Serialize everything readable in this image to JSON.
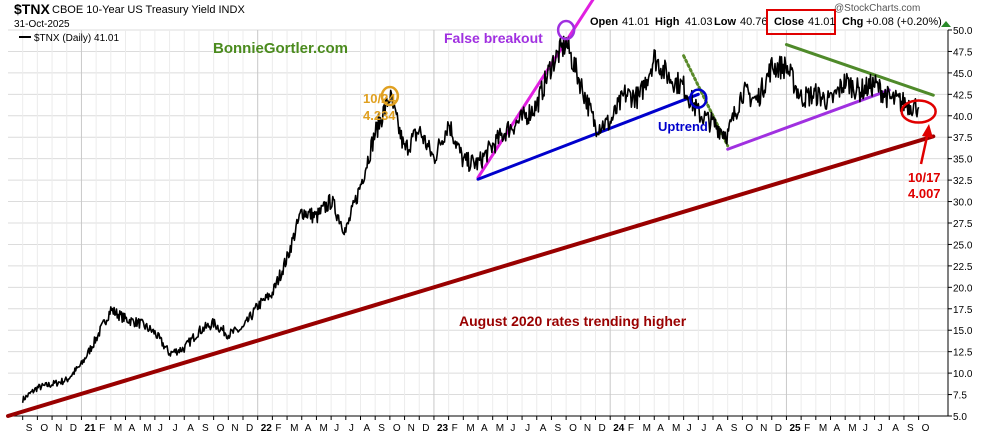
{
  "header": {
    "symbol": "$TNX",
    "name": "CBOE 10-Year US Treasury Yield INDX",
    "date": "31-Oct-2025",
    "watermark": "@StockCharts.com",
    "open_label": "Open",
    "open": "41.01",
    "high_label": "High",
    "high": "41.03",
    "low_label": "Low",
    "low": "40.76",
    "close_label": "Close",
    "close": "41.01",
    "chg_label": "Chg",
    "chg": "+0.08 (+0.20%)"
  },
  "legend": {
    "label": "$TNX (Daily) 41.01"
  },
  "annotations": {
    "brand": "BonnieGortler.com",
    "false_breakout": "False breakout",
    "oct_date": "10/24",
    "oct_value": "4.234",
    "uptrend": "Uptrend",
    "long_trend": "August 2020 rates trending higher",
    "low_date": "10/17",
    "low_value": "4.007"
  },
  "colors": {
    "price": "#000000",
    "long_trend": "#990000",
    "magenta": "#e020e0",
    "blue": "#0000cc",
    "purple": "#a030e0",
    "green_line": "#4f8a2a",
    "green_dotted": "#5a8a2a",
    "orange": "#e0a020",
    "red": "#e00000",
    "brand_green": "#4b8b1e",
    "grid": "#dcdcdc",
    "up_arrow": "#2a8a2a"
  },
  "chart_data": {
    "type": "line",
    "title": "$TNX CBOE 10-Year US Treasury Yield INDX",
    "series": [
      {
        "name": "$TNX (Daily) 41.01"
      }
    ],
    "x": [
      "2020-09",
      "2020-10",
      "2020-11",
      "2020-12",
      "2021-01",
      "2021-02",
      "2021-03",
      "2021-04",
      "2021-05",
      "2021-06",
      "2021-07",
      "2021-08",
      "2021-09",
      "2021-10",
      "2021-11",
      "2021-12",
      "2022-01",
      "2022-02",
      "2022-03",
      "2022-04",
      "2022-05",
      "2022-06",
      "2022-07",
      "2022-08",
      "2022-09",
      "2022-10",
      "2022-11",
      "2022-12",
      "2023-01",
      "2023-02",
      "2023-03",
      "2023-04",
      "2023-05",
      "2023-06",
      "2023-07",
      "2023-08",
      "2023-09",
      "2023-10",
      "2023-11",
      "2023-12",
      "2024-01",
      "2024-02",
      "2024-03",
      "2024-04",
      "2024-05",
      "2024-06",
      "2024-07",
      "2024-08",
      "2024-09",
      "2024-10",
      "2024-11",
      "2024-12",
      "2025-01",
      "2025-02",
      "2025-03",
      "2025-04",
      "2025-05",
      "2025-06",
      "2025-07",
      "2025-08",
      "2025-09",
      "2025-10"
    ],
    "y": [
      6.9,
      8.3,
      8.7,
      9.2,
      11.0,
      14.0,
      17.4,
      16.3,
      15.8,
      14.7,
      12.3,
      12.9,
      14.9,
      15.8,
      14.5,
      15.2,
      17.8,
      19.3,
      23.4,
      28.9,
      28.2,
      30.1,
      26.5,
      31.9,
      38.0,
      42.3,
      36.0,
      38.3,
      35.0,
      39.2,
      34.7,
      34.4,
      36.5,
      38.4,
      39.6,
      41.2,
      46.0,
      48.5,
      43.7,
      38.8,
      39.2,
      42.5,
      42.1,
      46.8,
      44.5,
      43.4,
      40.3,
      39.1,
      37.8,
      42.8,
      41.8,
      45.7,
      45.7,
      42.1,
      42.5,
      41.6,
      44.0,
      42.9,
      43.7,
      42.0,
      41.5,
      41.0
    ],
    "ylim": [
      5.0,
      50.0
    ],
    "yticks": [
      "5.0",
      "7.5",
      "10.0",
      "12.5",
      "15.0",
      "17.5",
      "20.0",
      "22.5",
      "25.0",
      "27.5",
      "30.0",
      "32.5",
      "35.0",
      "37.5",
      "40.0",
      "42.5",
      "45.0",
      "47.5",
      "50.0"
    ],
    "xtick_labels": [
      "S",
      "O",
      "N",
      "D",
      "21",
      "F",
      "M",
      "A",
      "M",
      "J",
      "J",
      "A",
      "S",
      "O",
      "N",
      "D",
      "22",
      "F",
      "M",
      "A",
      "M",
      "J",
      "J",
      "A",
      "S",
      "O",
      "N",
      "D",
      "23",
      "F",
      "M",
      "A",
      "M",
      "J",
      "J",
      "A",
      "S",
      "O",
      "N",
      "D",
      "24",
      "F",
      "M",
      "A",
      "M",
      "J",
      "J",
      "A",
      "S",
      "O",
      "N",
      "D",
      "25",
      "F",
      "M",
      "A",
      "M",
      "J",
      "J",
      "A",
      "S",
      "O"
    ],
    "trendlines": [
      {
        "name": "August 2020 rates trending higher",
        "color": "long_trend",
        "from": [
          "2020-08",
          5.0
        ],
        "to": [
          "2025-11",
          37.6
        ]
      },
      {
        "name": "False breakout",
        "color": "magenta",
        "from": [
          "2023-04",
          32.8
        ],
        "to": [
          "2023-12",
          54.0
        ]
      },
      {
        "name": "Uptrend",
        "color": "blue",
        "from": [
          "2023-04",
          32.6
        ],
        "to": [
          "2024-07",
          42.5
        ]
      },
      {
        "color": "purple",
        "from": [
          "2024-09",
          36.1
        ],
        "to": [
          "2025-08",
          43.0
        ]
      },
      {
        "color": "green_line",
        "from": [
          "2025-01",
          48.3
        ],
        "to": [
          "2025-11",
          42.4
        ]
      },
      {
        "color": "green_dotted",
        "from": [
          "2024-06",
          47.0
        ],
        "to": [
          "2024-09",
          36.5
        ]
      }
    ],
    "markers": [
      {
        "color": "purple",
        "at": [
          "2023-10",
          50.0
        ]
      },
      {
        "color": "orange",
        "at": [
          "2022-10",
          42.3
        ]
      },
      {
        "color": "blue",
        "at": [
          "2024-07",
          42.0
        ]
      },
      {
        "color": "red",
        "at": [
          "2025-10",
          40.5
        ]
      }
    ]
  }
}
